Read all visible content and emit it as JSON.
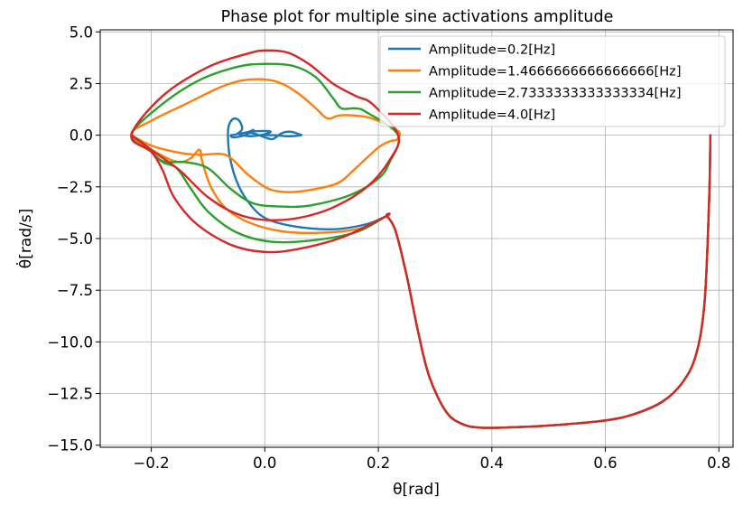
{
  "chart_data": {
    "type": "line",
    "title": "Phase plot for multiple sine activations amplitude",
    "xlabel": "θ[rad]",
    "ylabel": "θ̇[rad/s]",
    "xlim": [
      -0.29,
      0.825
    ],
    "ylim": [
      -15.1,
      5.1
    ],
    "xticks": [
      -0.2,
      0.0,
      0.2,
      0.4,
      0.6,
      0.8
    ],
    "xtick_labels": [
      "−0.2",
      "0.0",
      "0.2",
      "0.4",
      "0.6",
      "0.8"
    ],
    "yticks": [
      5.0,
      2.5,
      0.0,
      -2.5,
      -5.0,
      -7.5,
      -10.0,
      -12.5,
      -15.0
    ],
    "ytick_labels": [
      "5.0",
      "2.5",
      "0.0",
      "−2.5",
      "−5.0",
      "−7.5",
      "−10.0",
      "−12.5",
      "−15.0"
    ],
    "grid": true,
    "legend_position": "upper-right",
    "tail": [
      [
        0.785,
        0.0
      ],
      [
        0.783,
        -3.0
      ],
      [
        0.775,
        -8.0
      ],
      [
        0.76,
        -10.6
      ],
      [
        0.735,
        -12.0
      ],
      [
        0.7,
        -12.9
      ],
      [
        0.65,
        -13.5
      ],
      [
        0.6,
        -13.8
      ],
      [
        0.5,
        -14.05
      ],
      [
        0.42,
        -14.15
      ],
      [
        0.38,
        -14.15
      ],
      [
        0.35,
        -14.0
      ],
      [
        0.32,
        -13.4
      ],
      [
        0.29,
        -11.7
      ],
      [
        0.27,
        -9.5
      ],
      [
        0.25,
        -6.8
      ],
      [
        0.23,
        -4.6
      ],
      [
        0.215,
        -3.9
      ]
    ],
    "series": [
      {
        "name": "Amplitude=0.2[Hz]",
        "color": "#1f77b4",
        "points": [
          [
            0.215,
            -3.9
          ],
          [
            0.18,
            -4.3
          ],
          [
            0.12,
            -4.55
          ],
          [
            0.05,
            -4.4
          ],
          [
            0.0,
            -4.0
          ],
          [
            -0.03,
            -3.2
          ],
          [
            -0.05,
            -2.2
          ],
          [
            -0.062,
            -1.0
          ],
          [
            -0.065,
            0.0
          ],
          [
            -0.063,
            0.5
          ],
          [
            -0.055,
            0.8
          ],
          [
            -0.045,
            0.7
          ],
          [
            -0.04,
            0.3
          ],
          [
            -0.05,
            0.05
          ],
          [
            -0.06,
            0.0
          ],
          [
            -0.055,
            -0.1
          ],
          [
            -0.035,
            0.0
          ],
          [
            -0.02,
            0.25
          ],
          [
            -0.03,
            0.15
          ],
          [
            -0.045,
            0.05
          ],
          [
            -0.025,
            -0.05
          ],
          [
            0.0,
            0.05
          ],
          [
            0.01,
            0.18
          ],
          [
            -0.01,
            0.2
          ],
          [
            -0.03,
            0.15
          ],
          [
            -0.015,
            0.05
          ],
          [
            0.005,
            -0.15
          ],
          [
            0.015,
            -0.18
          ],
          [
            0.03,
            0.1
          ],
          [
            0.045,
            0.17
          ],
          [
            0.06,
            0.05
          ],
          [
            0.063,
            0.0
          ],
          [
            0.04,
            -0.05
          ],
          [
            0.02,
            0.0
          ],
          [
            0.0,
            0.0
          ]
        ]
      },
      {
        "name": "Amplitude=1.4666666666666666[Hz]",
        "color": "#ff7f0e",
        "points": [
          [
            0.215,
            -3.9
          ],
          [
            0.17,
            -4.5
          ],
          [
            0.1,
            -4.72
          ],
          [
            0.03,
            -4.65
          ],
          [
            -0.03,
            -4.2
          ],
          [
            -0.07,
            -3.5
          ],
          [
            -0.095,
            -2.5
          ],
          [
            -0.11,
            -1.3
          ],
          [
            -0.115,
            -0.7
          ],
          [
            -0.13,
            -1.1
          ],
          [
            -0.15,
            -1.3
          ],
          [
            -0.18,
            -1.0
          ],
          [
            -0.235,
            0.0
          ],
          [
            -0.2,
            0.7
          ],
          [
            -0.14,
            1.5
          ],
          [
            -0.08,
            2.3
          ],
          [
            -0.04,
            2.65
          ],
          [
            0.0,
            2.7
          ],
          [
            0.03,
            2.5
          ],
          [
            0.06,
            2.0
          ],
          [
            0.09,
            1.3
          ],
          [
            0.105,
            0.9
          ],
          [
            0.115,
            0.8
          ],
          [
            0.13,
            0.95
          ],
          [
            0.16,
            0.95
          ],
          [
            0.19,
            0.8
          ],
          [
            0.235,
            0.2
          ],
          [
            0.233,
            -0.2
          ],
          [
            0.22,
            -0.3
          ],
          [
            0.2,
            -0.6
          ],
          [
            0.16,
            -1.6
          ],
          [
            0.13,
            -2.3
          ],
          [
            0.09,
            -2.6
          ],
          [
            0.05,
            -2.75
          ],
          [
            0.02,
            -2.7
          ],
          [
            0.0,
            -2.5
          ],
          [
            -0.03,
            -1.9
          ],
          [
            -0.06,
            -1.1
          ],
          [
            -0.08,
            -0.9
          ],
          [
            -0.115,
            -0.95
          ],
          [
            -0.15,
            -0.85
          ],
          [
            -0.2,
            -0.5
          ],
          [
            -0.235,
            0.0
          ]
        ]
      },
      {
        "name": "Amplitude=2.7333333333333334[Hz]",
        "color": "#2ca02c",
        "points": [
          [
            0.215,
            -3.9
          ],
          [
            0.16,
            -4.7
          ],
          [
            0.08,
            -5.1
          ],
          [
            0.01,
            -5.15
          ],
          [
            -0.05,
            -4.7
          ],
          [
            -0.1,
            -3.7
          ],
          [
            -0.13,
            -2.6
          ],
          [
            -0.155,
            -1.6
          ],
          [
            -0.18,
            -1.3
          ],
          [
            -0.2,
            -0.8
          ],
          [
            -0.235,
            0.0
          ],
          [
            -0.19,
            1.3
          ],
          [
            -0.12,
            2.6
          ],
          [
            -0.05,
            3.3
          ],
          [
            0.0,
            3.45
          ],
          [
            0.05,
            3.35
          ],
          [
            0.09,
            2.8
          ],
          [
            0.12,
            1.8
          ],
          [
            0.135,
            1.3
          ],
          [
            0.16,
            1.3
          ],
          [
            0.18,
            1.1
          ],
          [
            0.235,
            0.0
          ],
          [
            0.22,
            -1.3
          ],
          [
            0.2,
            -2.1
          ],
          [
            0.15,
            -2.9
          ],
          [
            0.08,
            -3.4
          ],
          [
            0.03,
            -3.45
          ],
          [
            -0.02,
            -3.3
          ],
          [
            -0.06,
            -2.6
          ],
          [
            -0.1,
            -1.6
          ],
          [
            -0.14,
            -1.3
          ],
          [
            -0.18,
            -1.25
          ],
          [
            -0.21,
            -0.5
          ],
          [
            -0.235,
            0.0
          ]
        ]
      },
      {
        "name": "Amplitude=4.0[Hz]",
        "color": "#d62728",
        "points": [
          [
            0.215,
            -3.9
          ],
          [
            0.14,
            -4.9
          ],
          [
            0.06,
            -5.5
          ],
          [
            0.0,
            -5.65
          ],
          [
            -0.06,
            -5.3
          ],
          [
            -0.12,
            -4.3
          ],
          [
            -0.16,
            -3.0
          ],
          [
            -0.18,
            -1.7
          ],
          [
            -0.2,
            -0.8
          ],
          [
            -0.235,
            0.0
          ],
          [
            -0.18,
            1.9
          ],
          [
            -0.1,
            3.3
          ],
          [
            -0.03,
            3.95
          ],
          [
            0.0,
            4.1
          ],
          [
            0.04,
            4.0
          ],
          [
            0.08,
            3.4
          ],
          [
            0.12,
            2.5
          ],
          [
            0.16,
            1.9
          ],
          [
            0.19,
            1.5
          ],
          [
            0.235,
            0.0
          ],
          [
            0.22,
            -1.2
          ],
          [
            0.18,
            -2.5
          ],
          [
            0.12,
            -3.5
          ],
          [
            0.06,
            -4.0
          ],
          [
            0.0,
            -4.1
          ],
          [
            -0.05,
            -3.8
          ],
          [
            -0.1,
            -3.0
          ],
          [
            -0.15,
            -1.7
          ],
          [
            -0.19,
            -0.9
          ],
          [
            -0.235,
            0.0
          ]
        ]
      }
    ]
  }
}
